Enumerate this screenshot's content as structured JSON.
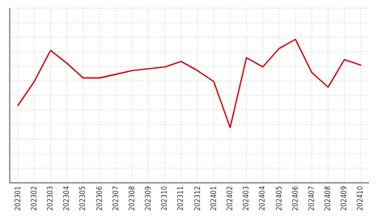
{
  "chart_data": {
    "type": "line",
    "categories": [
      "202301",
      "202302",
      "202303",
      "202304",
      "202305",
      "202306",
      "202307",
      "202308",
      "202309",
      "202310",
      "202311",
      "202312",
      "202401",
      "202402",
      "202403",
      "202404",
      "202405",
      "202406",
      "202407",
      "202408",
      "202409",
      "202410"
    ],
    "values": [
      42,
      55,
      72,
      65,
      57,
      57,
      59,
      61,
      62,
      63,
      66,
      61,
      55,
      30,
      68,
      63,
      73,
      78,
      60,
      52,
      67,
      64
    ],
    "color": "#cc0000",
    "ylim": [
      0,
      95
    ],
    "yticks": [
      0,
      7.916666666666667,
      15.833333333333334,
      23.75,
      31.666666666666668,
      39.583333333333336,
      47.5,
      55.416666666666664,
      63.333333333333336,
      71.25,
      79.16666666666667,
      87.08333333333333,
      95
    ],
    "grid": true,
    "tick_labels": "x"
  }
}
